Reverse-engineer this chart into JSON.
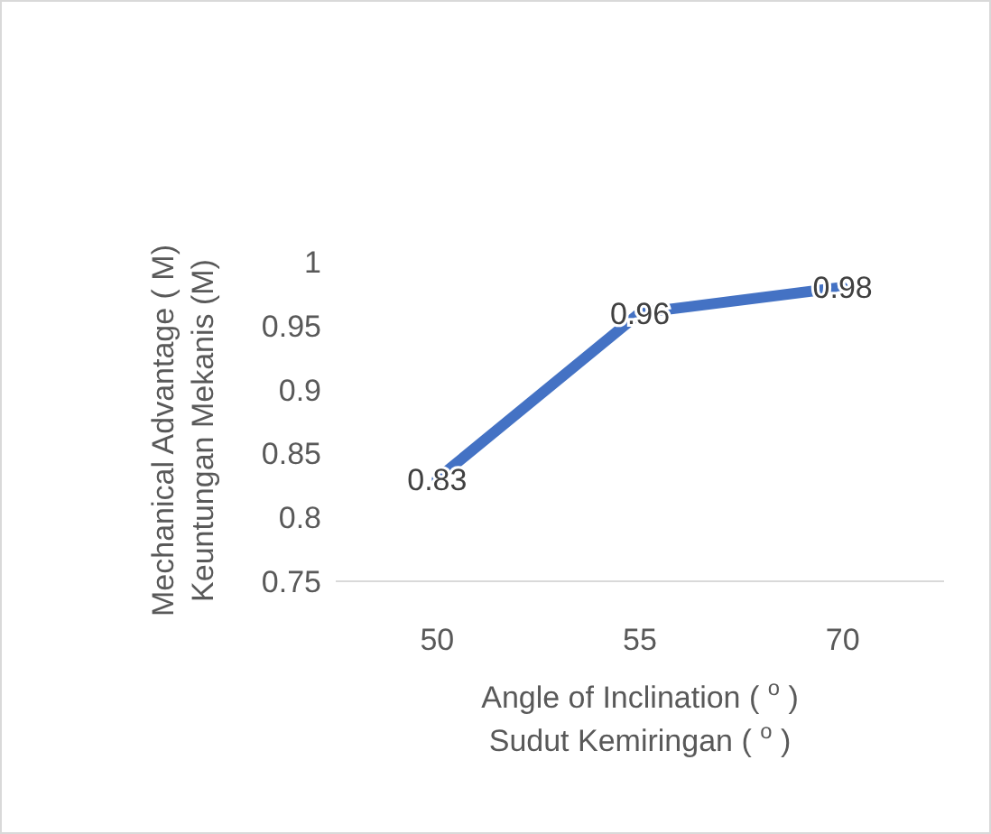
{
  "chart_data": {
    "type": "line",
    "xlabel": "Angle of Inclination ( $^{o}$ )\nSudut Kemiringan ( $^{o}$ )",
    "ylabel": "Mechanical Advantage ( M)\nKeuntungan Mekanis (M)",
    "categories": [
      "50",
      "55",
      "70"
    ],
    "series": [
      {
        "color": "#4472c4",
        "values": [
          0.83,
          0.96,
          0.98
        ]
      }
    ],
    "ylim": [
      0.75,
      1
    ],
    "yticks": [
      0.75,
      0.8,
      0.85,
      0.9,
      0.95,
      1
    ],
    "grid": false,
    "data_labels": true,
    "marker": "none",
    "line_style": "solid"
  }
}
